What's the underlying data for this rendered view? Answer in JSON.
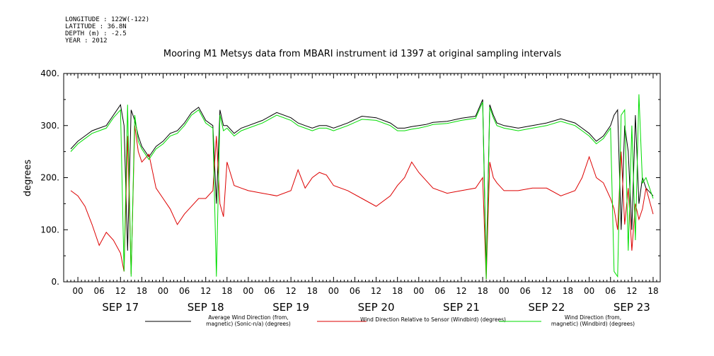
{
  "header": {
    "lines": [
      "LONGITUDE : 122W(-122)",
      "LATITUDE : 36.8N",
      "DEPTH (m) : -2.5",
      "YEAR : 2012"
    ]
  },
  "chart_data": {
    "type": "line",
    "title": "Mooring M1 Metsys data from MBARI instrument id 1397 at original sampling intervals",
    "ylabel": "degrees",
    "xlabel": "",
    "ylim": [
      0,
      400
    ],
    "xlim_hours": [
      -4,
      164
    ],
    "yticks": [
      0,
      100,
      200,
      300,
      400
    ],
    "ytick_labels": [
      "0.",
      "100.",
      "200.",
      "300.",
      "400."
    ],
    "xtick_labels": [
      "00",
      "06",
      "12",
      "18",
      "00",
      "06",
      "12",
      "18",
      "00",
      "06",
      "12",
      "18",
      "00",
      "06",
      "12",
      "18",
      "00",
      "06",
      "12",
      "18",
      "00",
      "06",
      "12",
      "18",
      "00",
      "06",
      "12",
      "18"
    ],
    "date_labels": [
      "SEP 17",
      "SEP 18",
      "SEP 19",
      "SEP 20",
      "SEP 21",
      "SEP 22",
      "SEP 23"
    ],
    "grid": false,
    "legend_position": "bottom",
    "series": [
      {
        "name": "Average Wind Direction (from, magnetic) (Sonic-n/a) (degrees)",
        "color": "#000000",
        "x": [
          -2,
          0,
          2,
          4,
          6,
          8,
          10,
          12,
          13,
          14,
          15,
          16,
          17,
          18,
          20,
          22,
          24,
          26,
          28,
          30,
          32,
          34,
          36,
          38,
          39,
          40,
          41,
          42,
          44,
          46,
          48,
          52,
          56,
          60,
          62,
          64,
          66,
          68,
          70,
          72,
          76,
          80,
          84,
          88,
          90,
          92,
          94,
          96,
          98,
          100,
          104,
          108,
          112,
          114,
          115,
          116,
          117,
          118,
          120,
          124,
          128,
          132,
          136,
          140,
          142,
          144,
          146,
          148,
          150,
          151,
          152,
          153,
          154,
          155,
          156,
          157,
          158,
          159,
          160,
          162
        ],
        "values": [
          255,
          270,
          280,
          290,
          295,
          300,
          320,
          340,
          300,
          60,
          330,
          310,
          280,
          260,
          240,
          260,
          270,
          285,
          290,
          305,
          325,
          335,
          310,
          300,
          150,
          330,
          300,
          300,
          285,
          295,
          300,
          310,
          325,
          315,
          305,
          300,
          295,
          300,
          300,
          295,
          305,
          318,
          315,
          305,
          295,
          295,
          298,
          300,
          302,
          306,
          308,
          314,
          318,
          350,
          20,
          340,
          320,
          305,
          300,
          295,
          300,
          305,
          313,
          305,
          295,
          285,
          270,
          280,
          300,
          320,
          330,
          100,
          300,
          250,
          100,
          320,
          150,
          200,
          180,
          165
        ]
      },
      {
        "name": "Wind Direction Relative to Sensor (Windbird) (degrees)",
        "color": "#dd0000",
        "x": [
          -2,
          0,
          2,
          4,
          6,
          8,
          10,
          12,
          13,
          14,
          15,
          16,
          17,
          18,
          20,
          22,
          24,
          26,
          28,
          30,
          32,
          34,
          36,
          38,
          39,
          40,
          41,
          42,
          44,
          46,
          48,
          52,
          56,
          60,
          62,
          64,
          66,
          68,
          70,
          72,
          76,
          80,
          84,
          88,
          90,
          92,
          94,
          96,
          98,
          100,
          104,
          108,
          112,
          114,
          115,
          116,
          117,
          118,
          120,
          124,
          128,
          132,
          136,
          140,
          142,
          144,
          146,
          148,
          150,
          151,
          152,
          153,
          154,
          155,
          156,
          157,
          158,
          159,
          160,
          162
        ],
        "values": [
          175,
          165,
          145,
          110,
          70,
          95,
          80,
          55,
          20,
          280,
          15,
          300,
          250,
          230,
          245,
          180,
          160,
          140,
          110,
          130,
          145,
          160,
          160,
          175,
          280,
          150,
          125,
          230,
          185,
          180,
          175,
          170,
          165,
          175,
          215,
          180,
          200,
          210,
          205,
          185,
          175,
          160,
          145,
          165,
          185,
          200,
          230,
          210,
          195,
          180,
          170,
          175,
          180,
          200,
          5,
          230,
          200,
          190,
          175,
          175,
          180,
          180,
          165,
          175,
          200,
          240,
          200,
          190,
          160,
          140,
          100,
          250,
          110,
          180,
          60,
          150,
          120,
          140,
          180,
          130
        ]
      },
      {
        "name": "Wind Direction (from, magnetic) (Windbird) (degrees)",
        "color": "#00dd00",
        "x": [
          -2,
          0,
          2,
          4,
          6,
          8,
          10,
          12,
          13,
          14,
          15,
          16,
          17,
          18,
          20,
          22,
          24,
          26,
          28,
          30,
          32,
          34,
          36,
          38,
          39,
          40,
          41,
          42,
          44,
          46,
          48,
          52,
          56,
          60,
          62,
          64,
          66,
          68,
          70,
          72,
          76,
          80,
          84,
          88,
          90,
          92,
          94,
          96,
          98,
          100,
          104,
          108,
          112,
          114,
          115,
          116,
          117,
          118,
          120,
          124,
          128,
          132,
          136,
          140,
          142,
          144,
          146,
          148,
          150,
          151,
          152,
          153,
          154,
          155,
          156,
          157,
          158,
          159,
          160,
          162
        ],
        "values": [
          250,
          265,
          275,
          285,
          290,
          295,
          315,
          330,
          20,
          340,
          10,
          320,
          270,
          255,
          235,
          255,
          265,
          280,
          285,
          300,
          320,
          330,
          305,
          295,
          10,
          320,
          290,
          295,
          280,
          290,
          295,
          305,
          320,
          310,
          300,
          295,
          290,
          295,
          295,
          290,
          300,
          312,
          310,
          300,
          290,
          290,
          293,
          295,
          298,
          302,
          304,
          310,
          314,
          345,
          5,
          335,
          315,
          300,
          295,
          290,
          295,
          300,
          308,
          300,
          290,
          280,
          265,
          275,
          295,
          20,
          10,
          320,
          330,
          60,
          300,
          80,
          360,
          190,
          200,
          160
        ]
      }
    ]
  }
}
